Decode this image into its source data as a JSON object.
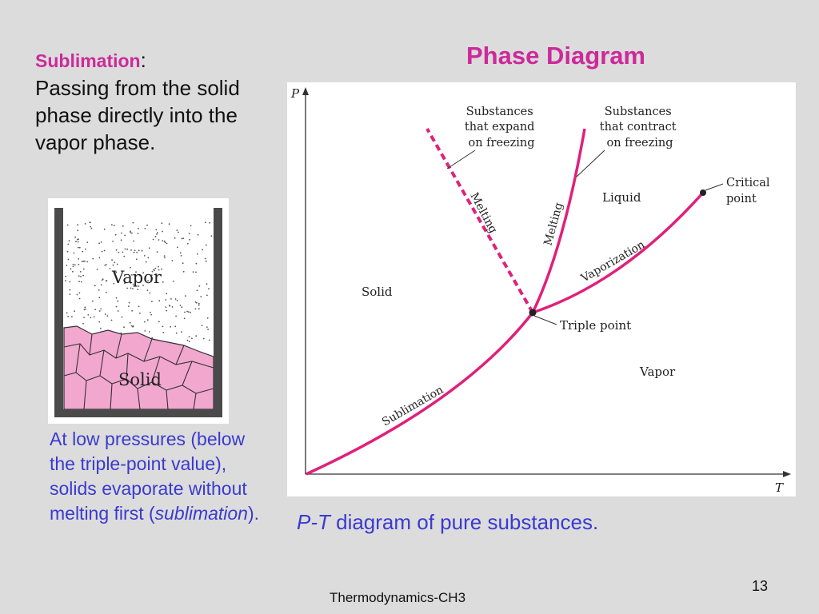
{
  "slide": {
    "title": "Phase Diagram",
    "definition": {
      "term": "Sublimation",
      "colon": ":",
      "text": "Passing from the solid phase directly into the vapor phase."
    },
    "note": {
      "before": "At low pressures (below the triple-point value), solids evaporate without melting first (",
      "emph": "sublimation",
      "after": ")."
    },
    "caption": {
      "emph": "P-T",
      "text": " diagram of pure substances."
    },
    "footer": "Thermodynamics-CH3",
    "page_number": "13"
  },
  "vessel": {
    "vapor_label": "Vapor",
    "solid_label": "Solid"
  },
  "diagram": {
    "axis_p": "P",
    "axis_t": "T",
    "region_solid": "Solid",
    "region_liquid": "Liquid",
    "region_vapor": "Vapor",
    "curve_melting_expand": "Melting",
    "curve_melting_contract": "Melting",
    "curve_vaporization": "Vaporization",
    "curve_sublimation": "Sublimation",
    "triple_point": "Triple point",
    "critical_point": [
      "Critical",
      "point"
    ],
    "note_expand": [
      "Substances",
      "that expand",
      "on freezing"
    ],
    "note_contract": [
      "Substances",
      "that contract",
      "on freezing"
    ],
    "curve_color": "#e0207a",
    "solid_fill": "#f2a7cf"
  }
}
